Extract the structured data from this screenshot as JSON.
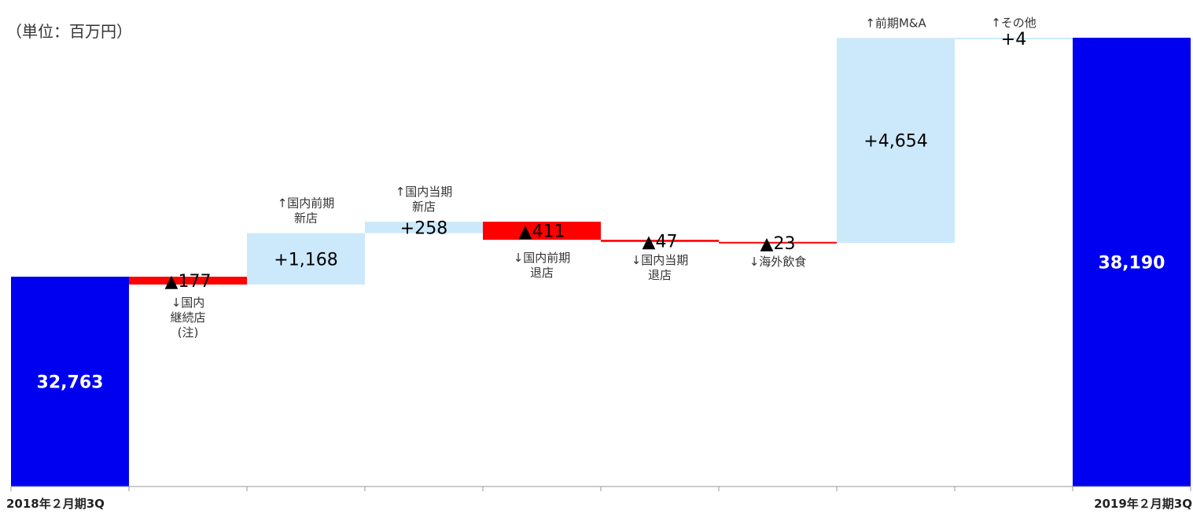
{
  "unit_label": "（単位：百万円）",
  "colors": {
    "total": "#0000f0",
    "increase": "#cce9fb",
    "decrease": "#ff0000",
    "axis": "#999999"
  },
  "chart_data": {
    "type": "bar",
    "subtype": "waterfall",
    "title": "",
    "ylim": [
      28000,
      38190
    ],
    "grid": false,
    "legend": "none",
    "steps": [
      {
        "kind": "total",
        "value": 32763,
        "label": "32,763",
        "category": [
          "2018年２月期3Q"
        ],
        "category_position": "axis"
      },
      {
        "kind": "delta",
        "value": -177,
        "label": "▲177",
        "category": [
          "↓国内",
          "継続店",
          "(注)"
        ],
        "category_position": "below"
      },
      {
        "kind": "delta",
        "value": 1168,
        "label": "+1,168",
        "category": [
          "↑国内前期",
          "新店"
        ],
        "category_position": "above"
      },
      {
        "kind": "delta",
        "value": 258,
        "label": "+258",
        "category": [
          "↑国内当期",
          "新店"
        ],
        "category_position": "above"
      },
      {
        "kind": "delta",
        "value": -411,
        "label": "▲411",
        "category": [
          "↓国内前期",
          "退店"
        ],
        "category_position": "below"
      },
      {
        "kind": "delta",
        "value": -47,
        "label": "▲47",
        "category": [
          "↓国内当期",
          "退店"
        ],
        "category_position": "below"
      },
      {
        "kind": "delta",
        "value": -23,
        "label": "▲23",
        "category": [
          "↓海外飲食"
        ],
        "category_position": "below"
      },
      {
        "kind": "delta",
        "value": 4654,
        "label": "+4,654",
        "category": [
          "↑前期M&A"
        ],
        "category_position": "above"
      },
      {
        "kind": "delta",
        "value": 4,
        "label": "+4",
        "category": [
          "↑その他"
        ],
        "category_position": "above"
      },
      {
        "kind": "total",
        "value": 38190,
        "label": "38,190",
        "category": [
          "2019年２月期3Q"
        ],
        "category_position": "axis"
      }
    ]
  }
}
